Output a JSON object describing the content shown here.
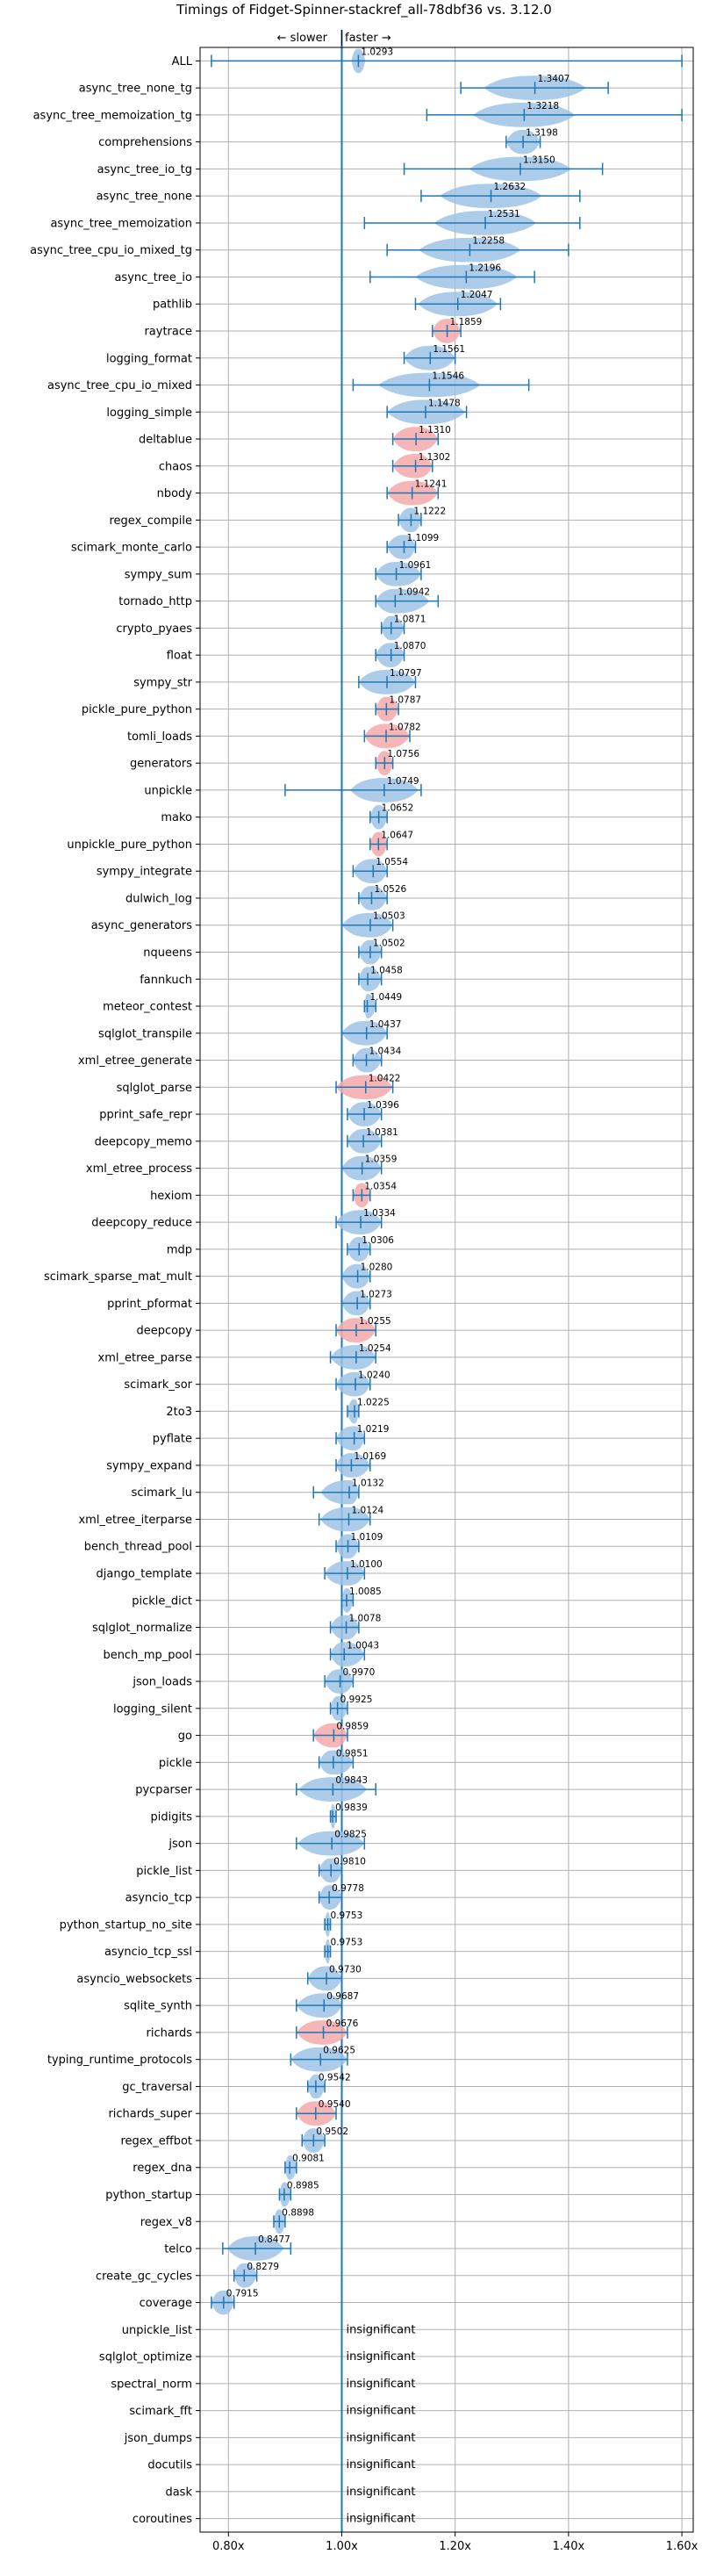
{
  "chart_data": {
    "type": "violin",
    "title": "Timings of Fidget-Spinner-stackref_all-78dbf36 vs. 3.12.0",
    "direction_labels": {
      "slower": "← slower",
      "faster": "faster →"
    },
    "xlim": [
      0.75,
      1.62
    ],
    "x_ticks": [
      {
        "value": 0.8,
        "label": "0.80x"
      },
      {
        "value": 1.0,
        "label": "1.00x"
      },
      {
        "value": 1.2,
        "label": "1.20x"
      },
      {
        "value": 1.4,
        "label": "1.40x"
      },
      {
        "value": 1.6,
        "label": "1.60x"
      }
    ],
    "grid": true,
    "colors": {
      "violin_blue": "#9ec3e6",
      "violin_red": "#f4a9ab",
      "bar_line": "#1f77b4",
      "grid": "#b0b0b0"
    },
    "insignificant_label": "insignificant",
    "benchmarks": [
      {
        "name": "ALL",
        "value": 1.0293,
        "min": 0.77,
        "max": 1.6,
        "width": 0.012,
        "color": "blue"
      },
      {
        "name": "async_tree_none_tg",
        "value": 1.3407,
        "min": 1.21,
        "max": 1.47,
        "width": 0.09,
        "color": "blue"
      },
      {
        "name": "async_tree_memoization_tg",
        "value": 1.3218,
        "min": 1.15,
        "max": 1.6,
        "width": 0.09,
        "color": "blue"
      },
      {
        "name": "comprehensions",
        "value": 1.3198,
        "min": 1.29,
        "max": 1.35,
        "width": 0.03,
        "color": "blue"
      },
      {
        "name": "async_tree_io_tg",
        "value": 1.315,
        "min": 1.11,
        "max": 1.46,
        "width": 0.09,
        "color": "blue"
      },
      {
        "name": "async_tree_none",
        "value": 1.2632,
        "min": 1.14,
        "max": 1.42,
        "width": 0.09,
        "color": "blue"
      },
      {
        "name": "async_tree_memoization",
        "value": 1.2531,
        "min": 1.04,
        "max": 1.42,
        "width": 0.09,
        "color": "blue"
      },
      {
        "name": "async_tree_cpu_io_mixed_tg",
        "value": 1.2258,
        "min": 1.08,
        "max": 1.4,
        "width": 0.09,
        "color": "blue"
      },
      {
        "name": "async_tree_io",
        "value": 1.2196,
        "min": 1.05,
        "max": 1.34,
        "width": 0.09,
        "color": "blue"
      },
      {
        "name": "pathlib",
        "value": 1.2047,
        "min": 1.13,
        "max": 1.28,
        "width": 0.07,
        "color": "blue"
      },
      {
        "name": "raytrace",
        "value": 1.1859,
        "min": 1.16,
        "max": 1.21,
        "width": 0.05,
        "color": "red"
      },
      {
        "name": "logging_format",
        "value": 1.1561,
        "min": 1.11,
        "max": 1.2,
        "width": 0.07,
        "color": "blue"
      },
      {
        "name": "async_tree_cpu_io_mixed",
        "value": 1.1546,
        "min": 1.02,
        "max": 1.33,
        "width": 0.09,
        "color": "blue"
      },
      {
        "name": "logging_simple",
        "value": 1.1478,
        "min": 1.08,
        "max": 1.22,
        "width": 0.07,
        "color": "blue"
      },
      {
        "name": "deltablue",
        "value": 1.131,
        "min": 1.09,
        "max": 1.17,
        "width": 0.06,
        "color": "red"
      },
      {
        "name": "chaos",
        "value": 1.1302,
        "min": 1.09,
        "max": 1.16,
        "width": 0.06,
        "color": "red"
      },
      {
        "name": "nbody",
        "value": 1.1241,
        "min": 1.08,
        "max": 1.17,
        "width": 0.06,
        "color": "red"
      },
      {
        "name": "regex_compile",
        "value": 1.1222,
        "min": 1.1,
        "max": 1.14,
        "width": 0.04,
        "color": "blue"
      },
      {
        "name": "scimark_monte_carlo",
        "value": 1.1099,
        "min": 1.08,
        "max": 1.13,
        "width": 0.05,
        "color": "blue"
      },
      {
        "name": "sympy_sum",
        "value": 1.0961,
        "min": 1.06,
        "max": 1.14,
        "width": 0.06,
        "color": "blue"
      },
      {
        "name": "tornado_http",
        "value": 1.0942,
        "min": 1.06,
        "max": 1.17,
        "width": 0.06,
        "color": "blue"
      },
      {
        "name": "crypto_pyaes",
        "value": 1.0871,
        "min": 1.07,
        "max": 1.11,
        "width": 0.04,
        "color": "blue"
      },
      {
        "name": "float",
        "value": 1.087,
        "min": 1.06,
        "max": 1.11,
        "width": 0.05,
        "color": "blue"
      },
      {
        "name": "sympy_str",
        "value": 1.0797,
        "min": 1.03,
        "max": 1.13,
        "width": 0.06,
        "color": "blue"
      },
      {
        "name": "pickle_pure_python",
        "value": 1.0787,
        "min": 1.06,
        "max": 1.1,
        "width": 0.05,
        "color": "red"
      },
      {
        "name": "tomli_loads",
        "value": 1.0782,
        "min": 1.04,
        "max": 1.12,
        "width": 0.06,
        "color": "red"
      },
      {
        "name": "generators",
        "value": 1.0756,
        "min": 1.06,
        "max": 1.09,
        "width": 0.04,
        "color": "red"
      },
      {
        "name": "unpickle",
        "value": 1.0749,
        "min": 0.9,
        "max": 1.14,
        "width": 0.06,
        "color": "blue"
      },
      {
        "name": "mako",
        "value": 1.0652,
        "min": 1.05,
        "max": 1.08,
        "width": 0.04,
        "color": "blue"
      },
      {
        "name": "unpickle_pure_python",
        "value": 1.0647,
        "min": 1.05,
        "max": 1.08,
        "width": 0.05,
        "color": "red"
      },
      {
        "name": "sympy_integrate",
        "value": 1.0554,
        "min": 1.02,
        "max": 1.08,
        "width": 0.05,
        "color": "blue"
      },
      {
        "name": "dulwich_log",
        "value": 1.0526,
        "min": 1.03,
        "max": 1.08,
        "width": 0.05,
        "color": "blue"
      },
      {
        "name": "async_generators",
        "value": 1.0503,
        "min": 1.0,
        "max": 1.09,
        "width": 0.05,
        "color": "blue"
      },
      {
        "name": "nqueens",
        "value": 1.0502,
        "min": 1.03,
        "max": 1.07,
        "width": 0.04,
        "color": "blue"
      },
      {
        "name": "fannkuch",
        "value": 1.0458,
        "min": 1.03,
        "max": 1.07,
        "width": 0.04,
        "color": "blue"
      },
      {
        "name": "meteor_contest",
        "value": 1.0449,
        "min": 1.04,
        "max": 1.06,
        "width": 0.03,
        "color": "blue"
      },
      {
        "name": "sqlglot_transpile",
        "value": 1.0437,
        "min": 1.0,
        "max": 1.08,
        "width": 0.05,
        "color": "blue"
      },
      {
        "name": "xml_etree_generate",
        "value": 1.0434,
        "min": 1.02,
        "max": 1.07,
        "width": 0.05,
        "color": "blue"
      },
      {
        "name": "sqlglot_parse",
        "value": 1.0422,
        "min": 0.99,
        "max": 1.09,
        "width": 0.06,
        "color": "red"
      },
      {
        "name": "pprint_safe_repr",
        "value": 1.0396,
        "min": 1.01,
        "max": 1.07,
        "width": 0.05,
        "color": "blue"
      },
      {
        "name": "deepcopy_memo",
        "value": 1.0381,
        "min": 1.01,
        "max": 1.07,
        "width": 0.05,
        "color": "blue"
      },
      {
        "name": "xml_etree_process",
        "value": 1.0359,
        "min": 1.0,
        "max": 1.07,
        "width": 0.05,
        "color": "blue"
      },
      {
        "name": "hexiom",
        "value": 1.0354,
        "min": 1.02,
        "max": 1.05,
        "width": 0.03,
        "color": "red"
      },
      {
        "name": "deepcopy_reduce",
        "value": 1.0334,
        "min": 0.99,
        "max": 1.07,
        "width": 0.05,
        "color": "blue"
      },
      {
        "name": "mdp",
        "value": 1.0306,
        "min": 1.01,
        "max": 1.05,
        "width": 0.04,
        "color": "blue"
      },
      {
        "name": "scimark_sparse_mat_mult",
        "value": 1.028,
        "min": 1.0,
        "max": 1.05,
        "width": 0.04,
        "color": "blue"
      },
      {
        "name": "pprint_pformat",
        "value": 1.0273,
        "min": 1.0,
        "max": 1.05,
        "width": 0.05,
        "color": "blue"
      },
      {
        "name": "deepcopy",
        "value": 1.0255,
        "min": 0.99,
        "max": 1.06,
        "width": 0.05,
        "color": "red"
      },
      {
        "name": "xml_etree_parse",
        "value": 1.0254,
        "min": 0.98,
        "max": 1.06,
        "width": 0.05,
        "color": "blue"
      },
      {
        "name": "scimark_sor",
        "value": 1.024,
        "min": 0.99,
        "max": 1.05,
        "width": 0.05,
        "color": "blue"
      },
      {
        "name": "2to3",
        "value": 1.0225,
        "min": 1.01,
        "max": 1.03,
        "width": 0.03,
        "color": "blue"
      },
      {
        "name": "pyflate",
        "value": 1.0219,
        "min": 0.99,
        "max": 1.04,
        "width": 0.05,
        "color": "blue"
      },
      {
        "name": "sympy_expand",
        "value": 1.0169,
        "min": 0.99,
        "max": 1.05,
        "width": 0.05,
        "color": "blue"
      },
      {
        "name": "scimark_lu",
        "value": 1.0132,
        "min": 0.95,
        "max": 1.03,
        "width": 0.05,
        "color": "blue"
      },
      {
        "name": "xml_etree_iterparse",
        "value": 1.0124,
        "min": 0.96,
        "max": 1.05,
        "width": 0.05,
        "color": "blue"
      },
      {
        "name": "bench_thread_pool",
        "value": 1.0109,
        "min": 0.99,
        "max": 1.03,
        "width": 0.04,
        "color": "blue"
      },
      {
        "name": "django_template",
        "value": 1.01,
        "min": 0.97,
        "max": 1.04,
        "width": 0.05,
        "color": "blue"
      },
      {
        "name": "pickle_dict",
        "value": 1.0085,
        "min": 1.0,
        "max": 1.02,
        "width": 0.03,
        "color": "blue"
      },
      {
        "name": "sqlglot_normalize",
        "value": 1.0078,
        "min": 0.98,
        "max": 1.03,
        "width": 0.05,
        "color": "blue"
      },
      {
        "name": "bench_mp_pool",
        "value": 1.0043,
        "min": 0.98,
        "max": 1.04,
        "width": 0.05,
        "color": "blue"
      },
      {
        "name": "json_loads",
        "value": 0.997,
        "min": 0.97,
        "max": 1.02,
        "width": 0.05,
        "color": "blue"
      },
      {
        "name": "logging_silent",
        "value": 0.9925,
        "min": 0.98,
        "max": 1.01,
        "width": 0.04,
        "color": "blue"
      },
      {
        "name": "go",
        "value": 0.9859,
        "min": 0.95,
        "max": 1.01,
        "width": 0.05,
        "color": "red"
      },
      {
        "name": "pickle",
        "value": 0.9851,
        "min": 0.96,
        "max": 1.02,
        "width": 0.05,
        "color": "blue"
      },
      {
        "name": "pycparser",
        "value": 0.9843,
        "min": 0.92,
        "max": 1.06,
        "width": 0.06,
        "color": "blue"
      },
      {
        "name": "pidigits",
        "value": 0.9839,
        "min": 0.98,
        "max": 0.99,
        "width": 0.02,
        "color": "blue"
      },
      {
        "name": "json",
        "value": 0.9825,
        "min": 0.92,
        "max": 1.04,
        "width": 0.06,
        "color": "blue"
      },
      {
        "name": "pickle_list",
        "value": 0.981,
        "min": 0.96,
        "max": 1.0,
        "width": 0.05,
        "color": "blue"
      },
      {
        "name": "asyncio_tcp",
        "value": 0.9778,
        "min": 0.96,
        "max": 1.0,
        "width": 0.04,
        "color": "blue"
      },
      {
        "name": "python_startup_no_site",
        "value": 0.9753,
        "min": 0.97,
        "max": 0.98,
        "width": 0.02,
        "color": "blue"
      },
      {
        "name": "asyncio_tcp_ssl",
        "value": 0.9753,
        "min": 0.97,
        "max": 0.98,
        "width": 0.02,
        "color": "blue"
      },
      {
        "name": "asyncio_websockets",
        "value": 0.973,
        "min": 0.94,
        "max": 1.0,
        "width": 0.05,
        "color": "blue"
      },
      {
        "name": "sqlite_synth",
        "value": 0.9687,
        "min": 0.92,
        "max": 1.0,
        "width": 0.05,
        "color": "blue"
      },
      {
        "name": "richards",
        "value": 0.9676,
        "min": 0.92,
        "max": 1.01,
        "width": 0.06,
        "color": "red"
      },
      {
        "name": "typing_runtime_protocols",
        "value": 0.9625,
        "min": 0.91,
        "max": 1.01,
        "width": 0.06,
        "color": "blue"
      },
      {
        "name": "gc_traversal",
        "value": 0.9542,
        "min": 0.94,
        "max": 0.97,
        "width": 0.04,
        "color": "blue"
      },
      {
        "name": "richards_super",
        "value": 0.954,
        "min": 0.92,
        "max": 0.99,
        "width": 0.06,
        "color": "red"
      },
      {
        "name": "regex_effbot",
        "value": 0.9502,
        "min": 0.93,
        "max": 0.97,
        "width": 0.05,
        "color": "blue"
      },
      {
        "name": "regex_dna",
        "value": 0.9081,
        "min": 0.9,
        "max": 0.92,
        "width": 0.03,
        "color": "blue"
      },
      {
        "name": "python_startup",
        "value": 0.8985,
        "min": 0.89,
        "max": 0.91,
        "width": 0.03,
        "color": "blue"
      },
      {
        "name": "regex_v8",
        "value": 0.8898,
        "min": 0.88,
        "max": 0.9,
        "width": 0.03,
        "color": "blue"
      },
      {
        "name": "telco",
        "value": 0.8477,
        "min": 0.79,
        "max": 0.91,
        "width": 0.05,
        "color": "blue"
      },
      {
        "name": "create_gc_cycles",
        "value": 0.8279,
        "min": 0.81,
        "max": 0.85,
        "width": 0.04,
        "color": "blue"
      },
      {
        "name": "coverage",
        "value": 0.7915,
        "min": 0.77,
        "max": 0.81,
        "width": 0.04,
        "color": "blue"
      },
      {
        "name": "unpickle_list",
        "insignificant": true
      },
      {
        "name": "sqlglot_optimize",
        "insignificant": true
      },
      {
        "name": "spectral_norm",
        "insignificant": true
      },
      {
        "name": "scimark_fft",
        "insignificant": true
      },
      {
        "name": "json_dumps",
        "insignificant": true
      },
      {
        "name": "docutils",
        "insignificant": true
      },
      {
        "name": "dask",
        "insignificant": true
      },
      {
        "name": "coroutines",
        "insignificant": true
      }
    ]
  }
}
